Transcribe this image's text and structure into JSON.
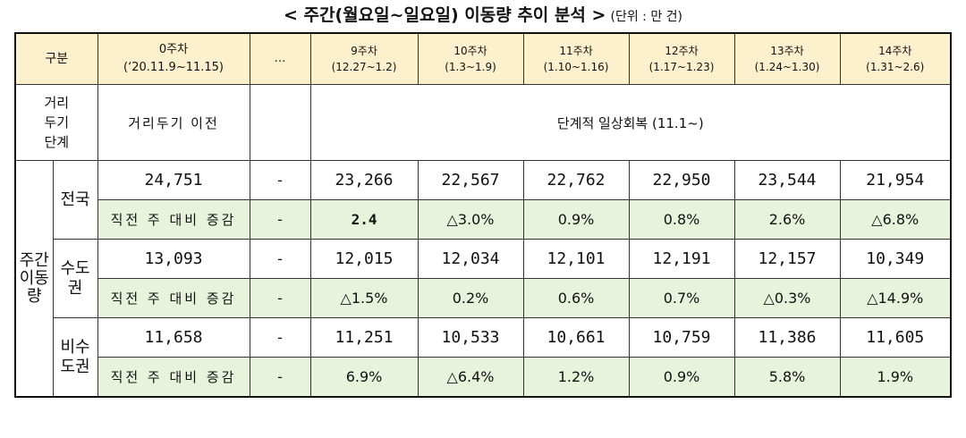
{
  "title": {
    "main": "< 주간(월요일~일요일) 이동량 추이 분석 >",
    "unit": "(단위 : 만 건)"
  },
  "header": {
    "category": "구분",
    "week0_line1": "0주차",
    "week0_line2": "(‘20.11.9~11.15)",
    "ellipsis": "…",
    "weeks": [
      {
        "label": "9주차",
        "range": "(12.27~1.2)"
      },
      {
        "label": "10주차",
        "range": "(1.3~1.9)"
      },
      {
        "label": "11주차",
        "range": "(1.10~1.16)"
      },
      {
        "label": "12주차",
        "range": "(1.17~1.23)"
      },
      {
        "label": "13주차",
        "range": "(1.24~1.30)"
      },
      {
        "label": "14주차",
        "range": "(1.31~2.6)"
      }
    ]
  },
  "stage": {
    "label_l1": "거리",
    "label_l2": "두기",
    "label_l3": "단계",
    "before": "거리두기 이전",
    "after": "단계적 일상회복 (11.1~)"
  },
  "side_label": {
    "l1": "주간",
    "l2": "이동",
    "l3": "량"
  },
  "rows": {
    "change_label": "직전 주 대비 증감",
    "dash": "-",
    "national": {
      "name": "전국",
      "week0": "24,751",
      "values": [
        "23,266",
        "22,567",
        "22,762",
        "22,950",
        "23,544",
        "21,954"
      ],
      "changes": [
        "2.4",
        "△3.0%",
        "0.9%",
        "0.8%",
        "2.6%",
        "△6.8%"
      ]
    },
    "capital": {
      "name_l1": "수도",
      "name_l2": "권",
      "week0": "13,093",
      "values": [
        "12,015",
        "12,034",
        "12,101",
        "12,191",
        "12,157",
        "10,349"
      ],
      "changes": [
        "△1.5%",
        "0.2%",
        "0.6%",
        "0.7%",
        "△0.3%",
        "△14.9%"
      ]
    },
    "noncapital": {
      "name_l1": "비수",
      "name_l2": "도권",
      "week0": "11,658",
      "values": [
        "11,251",
        "10,533",
        "10,661",
        "10,759",
        "11,386",
        "11,605"
      ],
      "changes": [
        "6.9%",
        "△6.4%",
        "1.2%",
        "0.9%",
        "5.8%",
        "1.9%"
      ]
    }
  },
  "colors": {
    "header_bg": "#fdf0cc",
    "change_bg": "#e8f3dc"
  }
}
